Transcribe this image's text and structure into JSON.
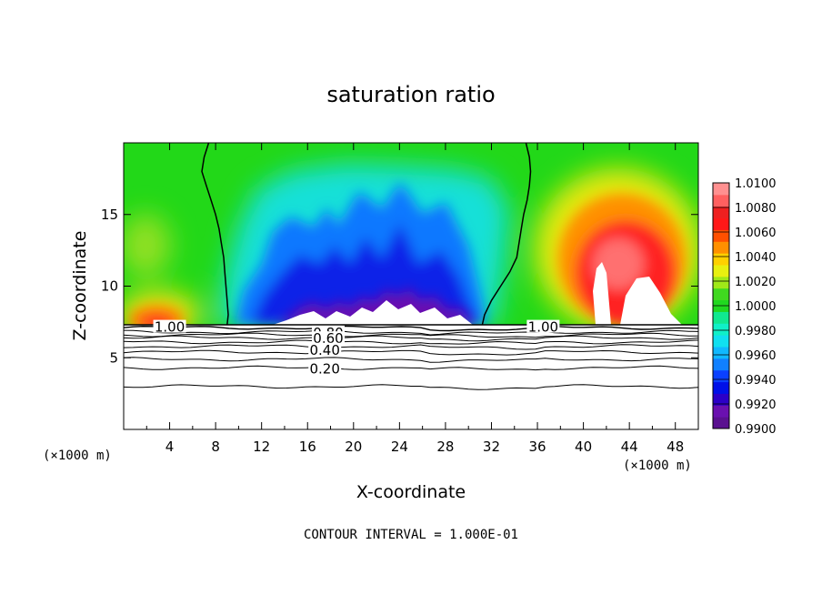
{
  "chart_data": {
    "type": "heatmap",
    "title": "saturation ratio",
    "xlabel": "X-coordinate",
    "ylabel": "Z-coordinate",
    "x_unit_left": "(×1000 m)",
    "x_unit_right": "(×1000 m)",
    "xlim": [
      0,
      50
    ],
    "ylim": [
      0,
      20
    ],
    "x_ticks": [
      4,
      8,
      12,
      16,
      20,
      24,
      28,
      32,
      36,
      40,
      44,
      48
    ],
    "y_ticks": [
      5,
      10,
      15
    ],
    "footer": "CONTOUR INTERVAL = 1.000E-01",
    "colorbar": {
      "min": 0.99,
      "max": 1.01,
      "labels": [
        "1.0100",
        "1.0080",
        "1.0060",
        "1.0040",
        "1.0020",
        "1.0000",
        "0.9980",
        "0.9960",
        "0.9940",
        "0.9920",
        "0.9900"
      ],
      "colors": [
        "#5a1090",
        "#6a10b0",
        "#2c00c8",
        "#0010e8",
        "#0a40ff",
        "#1080ff",
        "#10b8ff",
        "#10e0f0",
        "#10f0c8",
        "#10e890",
        "#20d820",
        "#40d820",
        "#a0e818",
        "#e8f010",
        "#ffd000",
        "#ff9000",
        "#ff5000",
        "#ff1818",
        "#ee2020",
        "#ff6060",
        "#ff9090"
      ]
    },
    "contour_labels": [
      {
        "text": "1.00",
        "x": 4.0,
        "y": 7.2
      },
      {
        "text": "1.00",
        "x": 36.5,
        "y": 7.2
      },
      {
        "text": "0.80",
        "x": 17.8,
        "y": 6.8
      },
      {
        "text": "0.60",
        "x": 17.8,
        "y": 6.4
      },
      {
        "text": "0.40",
        "x": 17.5,
        "y": 5.6
      },
      {
        "text": "0.20",
        "x": 17.5,
        "y": 4.3
      }
    ],
    "contour_lines_z": [
      7.1,
      6.8,
      6.6,
      6.4,
      6.1,
      5.8,
      5.4,
      4.9,
      4.3,
      3.0
    ],
    "cloud_base_z": 7.3,
    "saturation_boundary_left": [
      [
        7.4,
        20
      ],
      [
        7.0,
        19
      ],
      [
        6.8,
        18
      ],
      [
        7.2,
        17
      ],
      [
        7.6,
        16
      ],
      [
        8.0,
        15
      ],
      [
        8.3,
        14
      ],
      [
        8.5,
        13
      ],
      [
        8.7,
        12
      ],
      [
        8.8,
        11
      ],
      [
        8.9,
        10
      ],
      [
        9.0,
        9
      ],
      [
        9.1,
        8
      ],
      [
        9.0,
        7.3
      ]
    ],
    "saturation_boundary_right": [
      [
        35.0,
        20
      ],
      [
        35.3,
        19
      ],
      [
        35.4,
        18
      ],
      [
        35.3,
        17
      ],
      [
        35.1,
        16
      ],
      [
        34.8,
        15
      ],
      [
        34.6,
        14
      ],
      [
        34.4,
        13
      ],
      [
        34.2,
        12
      ],
      [
        33.6,
        11
      ],
      [
        32.8,
        10
      ],
      [
        32.0,
        9
      ],
      [
        31.4,
        8
      ],
      [
        31.2,
        7.3
      ]
    ]
  }
}
